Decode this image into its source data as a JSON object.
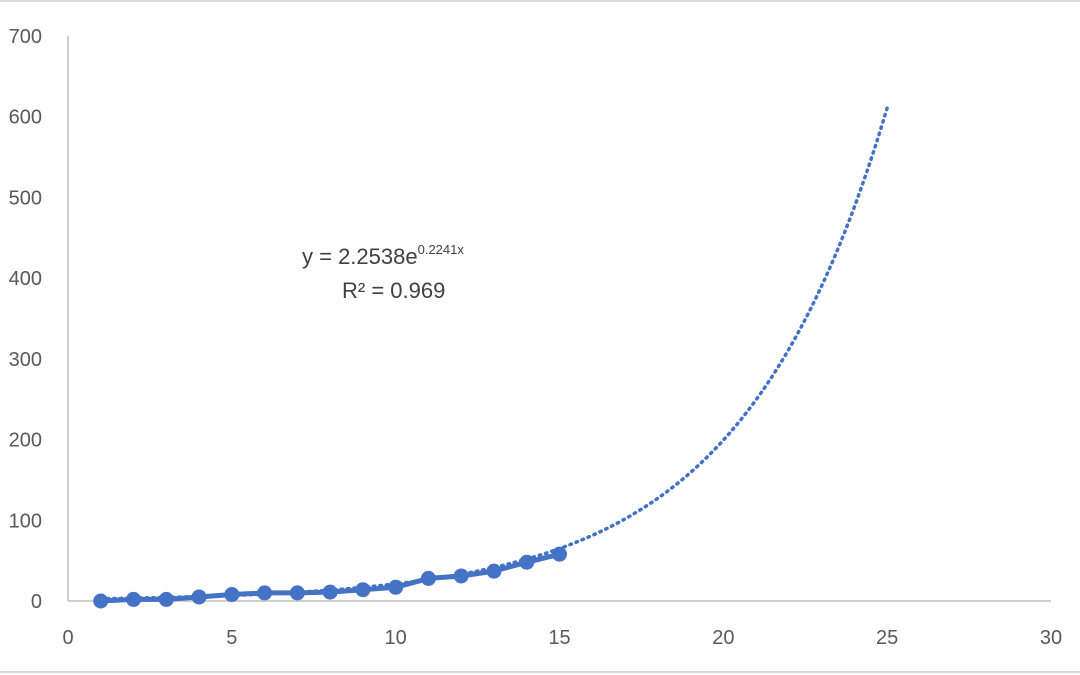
{
  "chart_data": {
    "type": "scatter",
    "title": "",
    "xlabel": "",
    "ylabel": "",
    "xlim": [
      0,
      30
    ],
    "ylim": [
      0,
      700
    ],
    "x_ticks": [
      0,
      5,
      10,
      15,
      20,
      25,
      30
    ],
    "y_ticks": [
      0,
      100,
      200,
      300,
      400,
      500,
      600,
      700
    ],
    "x_tick_labels": [
      "0",
      "5",
      "10",
      "15",
      "20",
      "25",
      "30"
    ],
    "y_tick_labels": [
      "0",
      "100",
      "200",
      "300",
      "400",
      "500",
      "600",
      "700"
    ],
    "grid": false,
    "legend": "none",
    "series": [
      {
        "x": [
          1,
          2,
          3,
          4,
          5,
          6,
          7,
          8,
          9,
          10,
          11,
          12,
          13,
          14,
          15
        ],
        "values": [
          0,
          2,
          2,
          5,
          8,
          10,
          10,
          11,
          14,
          17,
          28,
          31,
          37,
          48,
          58
        ],
        "color": "#4472C4",
        "style": "line-markers"
      }
    ],
    "trendline": {
      "type": "exponential",
      "a": 2.2538,
      "b": 0.2241,
      "x_range": [
        1,
        25
      ],
      "style": "dotted",
      "color": "#4472C4"
    },
    "annotations": {
      "equation_main": "y = 2.2538e",
      "equation_exponent": "0.2241x",
      "r_squared": "R² = 0.969"
    }
  }
}
